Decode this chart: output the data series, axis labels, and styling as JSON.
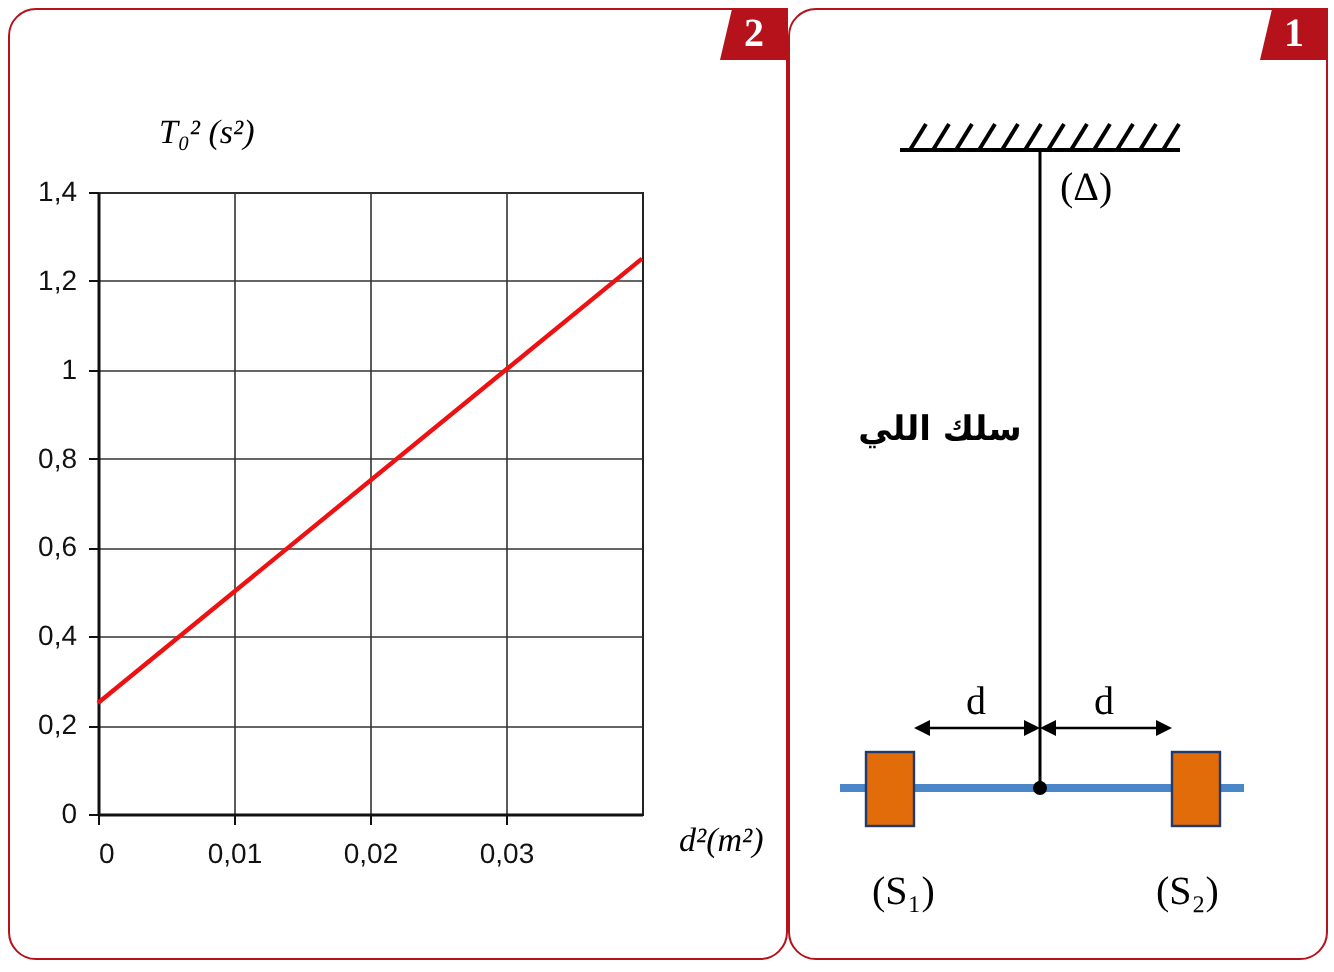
{
  "chart_data": [
    {
      "type": "line",
      "annotations": [
        "2"
      ],
      "xlabel": "d²(m²)",
      "ylabel": "T₀² (s²)",
      "x": [
        0,
        0.04
      ],
      "series": [
        {
          "color": "#ee1111",
          "values": [
            0.25,
            1.25
          ]
        }
      ],
      "xlim": [
        0,
        0.04
      ],
      "xticks": [
        0,
        {
          "value": 0.01,
          "label": "0,01"
        },
        {
          "value": 0.02,
          "label": "0,02"
        },
        {
          "value": 0.03,
          "label": "0,03"
        }
      ],
      "ylim": [
        0,
        1.4
      ],
      "yticks": [
        0,
        {
          "value": 0.2,
          "label": "0,2"
        },
        {
          "value": 0.4,
          "label": "0,4"
        },
        {
          "value": 0.6,
          "label": "0,6"
        },
        {
          "value": 0.8,
          "label": "0,8"
        },
        1,
        {
          "value": 1.2,
          "label": "1,2"
        },
        {
          "value": 1.4,
          "label": "1,4"
        }
      ],
      "grid": true,
      "marker": "none",
      "line_style": "solid",
      "legend": false
    },
    {
      "type": "other",
      "title": "1",
      "annotations": [
        "(Δ)",
        "سلك اللي",
        "d",
        "d",
        "(S₁)",
        "(S₂)"
      ]
    }
  ]
}
